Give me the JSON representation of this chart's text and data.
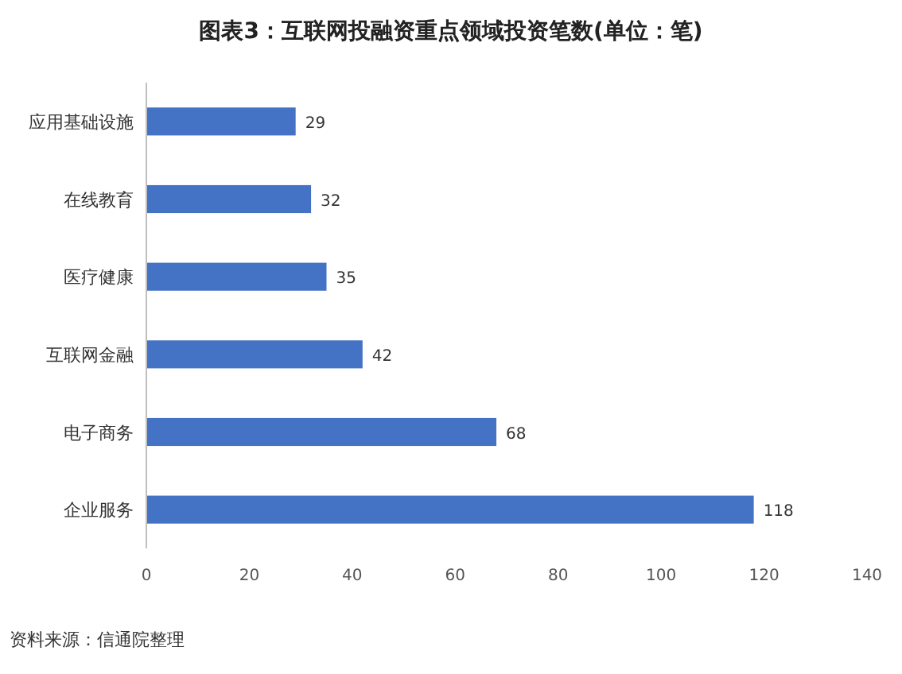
{
  "chart_data": {
    "type": "bar",
    "orientation": "horizontal",
    "title": "图表3：互联网投融资重点领域投资笔数(单位：笔)",
    "categories": [
      "应用基础设施",
      "在线教育",
      "医疗健康",
      "互联网金融",
      "电子商务",
      "企业服务"
    ],
    "values": [
      29,
      32,
      35,
      42,
      68,
      118
    ],
    "color": "#4472c4",
    "xlim": [
      0,
      140
    ],
    "xticks": [
      0,
      20,
      40,
      60,
      80,
      100,
      120,
      140
    ],
    "data_labels": true,
    "annotations": [
      "资料来源：信通院整理"
    ]
  }
}
